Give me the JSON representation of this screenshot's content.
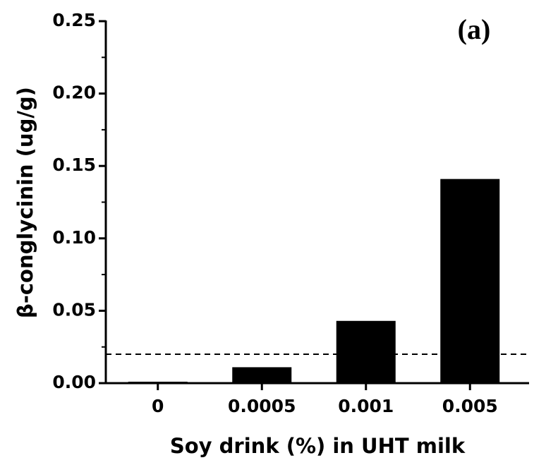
{
  "chart_data": {
    "type": "bar",
    "annotation": "(a)",
    "xlabel": "Soy drink (%) in UHT milk",
    "ylabel": "β-conglycinin (ug/g)",
    "categories": [
      "0",
      "0.0005",
      "0.001",
      "0.005"
    ],
    "values": [
      0.001,
      0.011,
      0.043,
      0.141
    ],
    "color": "#000000",
    "reference_line": 0.02,
    "ylim": [
      0,
      0.25
    ],
    "yticks": [
      {
        "value": 0,
        "label": "0.00"
      },
      {
        "value": 0.05,
        "label": "0.05"
      },
      {
        "value": 0.1,
        "label": "0.10"
      },
      {
        "value": 0.15,
        "label": "0.15"
      },
      {
        "value": 0.2,
        "label": "0.20"
      },
      {
        "value": 0.25,
        "label": "0.25"
      }
    ],
    "yminor": [
      0.025,
      0.075,
      0.125,
      0.175,
      0.225
    ],
    "grid": false
  }
}
